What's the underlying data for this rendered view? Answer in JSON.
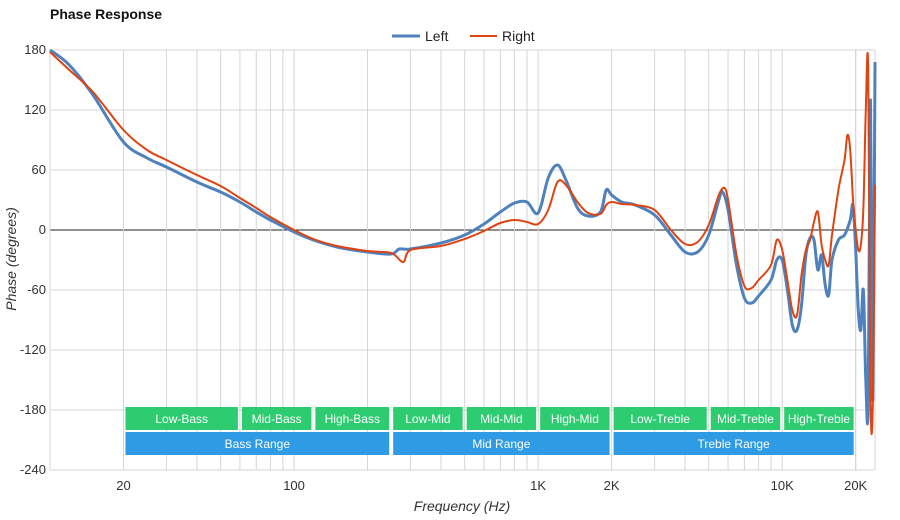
{
  "chart_data": {
    "type": "line",
    "title": "Phase Response",
    "xlabel": "Frequency (Hz)",
    "ylabel": "Phase (degrees)",
    "x_scale": "log",
    "xlim": [
      10,
      24000
    ],
    "ylim": [
      -240,
      180
    ],
    "y_ticks": [
      180,
      120,
      60,
      0,
      -60,
      -120,
      -180,
      -240
    ],
    "x_ticks": [
      {
        "value": 20,
        "label": "20"
      },
      {
        "value": 100,
        "label": "100"
      },
      {
        "value": 1000,
        "label": "1K"
      },
      {
        "value": 2000,
        "label": "2K"
      },
      {
        "value": 10000,
        "label": "10K"
      },
      {
        "value": 20000,
        "label": "20K"
      }
    ],
    "grid": true,
    "legend_position": "top-center",
    "series": [
      {
        "name": "Left",
        "color": "#4f81bd",
        "points": [
          [
            10,
            180
          ],
          [
            12,
            165
          ],
          [
            15,
            135
          ],
          [
            20,
            88
          ],
          [
            25,
            72
          ],
          [
            30,
            63
          ],
          [
            40,
            48
          ],
          [
            50,
            38
          ],
          [
            60,
            28
          ],
          [
            70,
            18
          ],
          [
            80,
            10
          ],
          [
            100,
            -2
          ],
          [
            120,
            -10
          ],
          [
            150,
            -17
          ],
          [
            200,
            -22
          ],
          [
            250,
            -24
          ],
          [
            270,
            -19
          ],
          [
            300,
            -19
          ],
          [
            400,
            -13
          ],
          [
            500,
            -5
          ],
          [
            600,
            6
          ],
          [
            700,
            18
          ],
          [
            800,
            27
          ],
          [
            900,
            28
          ],
          [
            1000,
            17
          ],
          [
            1100,
            52
          ],
          [
            1200,
            65
          ],
          [
            1300,
            50
          ],
          [
            1450,
            22
          ],
          [
            1600,
            14
          ],
          [
            1800,
            18
          ],
          [
            1900,
            40
          ],
          [
            2000,
            35
          ],
          [
            2200,
            28
          ],
          [
            2500,
            25
          ],
          [
            3000,
            15
          ],
          [
            3500,
            -5
          ],
          [
            4000,
            -22
          ],
          [
            4500,
            -22
          ],
          [
            5000,
            -5
          ],
          [
            5500,
            30
          ],
          [
            5700,
            38
          ],
          [
            6000,
            20
          ],
          [
            6500,
            -35
          ],
          [
            7000,
            -68
          ],
          [
            7500,
            -73
          ],
          [
            8000,
            -66
          ],
          [
            9000,
            -50
          ],
          [
            9500,
            -30
          ],
          [
            10000,
            -30
          ],
          [
            10500,
            -60
          ],
          [
            11000,
            -95
          ],
          [
            11500,
            -100
          ],
          [
            12000,
            -75
          ],
          [
            12500,
            -25
          ],
          [
            13000,
            -8
          ],
          [
            13500,
            -10
          ],
          [
            14000,
            -40
          ],
          [
            14500,
            -25
          ],
          [
            15000,
            -55
          ],
          [
            15500,
            -65
          ],
          [
            16000,
            -30
          ],
          [
            17000,
            -10
          ],
          [
            18000,
            -5
          ],
          [
            19000,
            10
          ],
          [
            19500,
            25
          ],
          [
            20000,
            -20
          ],
          [
            20500,
            -80
          ],
          [
            21000,
            -100
          ],
          [
            21500,
            -60
          ],
          [
            22000,
            -150
          ],
          [
            22500,
            -175
          ],
          [
            23000,
            130
          ],
          [
            23500,
            -170
          ],
          [
            24000,
            168
          ]
        ]
      },
      {
        "name": "Right",
        "color": "#dd4411",
        "points": [
          [
            10,
            178
          ],
          [
            12,
            160
          ],
          [
            15,
            138
          ],
          [
            20,
            100
          ],
          [
            25,
            80
          ],
          [
            30,
            70
          ],
          [
            40,
            55
          ],
          [
            50,
            44
          ],
          [
            60,
            32
          ],
          [
            70,
            22
          ],
          [
            80,
            13
          ],
          [
            100,
            0
          ],
          [
            120,
            -9
          ],
          [
            150,
            -16
          ],
          [
            200,
            -21
          ],
          [
            250,
            -23
          ],
          [
            280,
            -32
          ],
          [
            300,
            -20
          ],
          [
            400,
            -16
          ],
          [
            500,
            -9
          ],
          [
            600,
            -1
          ],
          [
            700,
            7
          ],
          [
            800,
            10
          ],
          [
            900,
            8
          ],
          [
            1000,
            6
          ],
          [
            1100,
            20
          ],
          [
            1200,
            48
          ],
          [
            1300,
            45
          ],
          [
            1450,
            28
          ],
          [
            1600,
            17
          ],
          [
            1800,
            16
          ],
          [
            1900,
            25
          ],
          [
            2000,
            28
          ],
          [
            2200,
            26
          ],
          [
            2500,
            25
          ],
          [
            3000,
            20
          ],
          [
            3500,
            0
          ],
          [
            4000,
            -14
          ],
          [
            4500,
            -12
          ],
          [
            5000,
            5
          ],
          [
            5500,
            35
          ],
          [
            5800,
            42
          ],
          [
            6000,
            30
          ],
          [
            6500,
            -25
          ],
          [
            7000,
            -56
          ],
          [
            7500,
            -58
          ],
          [
            8000,
            -50
          ],
          [
            9000,
            -35
          ],
          [
            9500,
            -10
          ],
          [
            10000,
            -20
          ],
          [
            10500,
            -50
          ],
          [
            11000,
            -80
          ],
          [
            11500,
            -85
          ],
          [
            12000,
            -45
          ],
          [
            12500,
            -20
          ],
          [
            13000,
            -10
          ],
          [
            13500,
            8
          ],
          [
            14000,
            18
          ],
          [
            14500,
            -15
          ],
          [
            15000,
            -30
          ],
          [
            15500,
            -35
          ],
          [
            16000,
            -5
          ],
          [
            17000,
            40
          ],
          [
            18000,
            70
          ],
          [
            18500,
            95
          ],
          [
            19000,
            80
          ],
          [
            19500,
            30
          ],
          [
            20000,
            0
          ],
          [
            20500,
            -20
          ],
          [
            21000,
            -15
          ],
          [
            21500,
            20
          ],
          [
            22000,
            120
          ],
          [
            22500,
            160
          ],
          [
            23000,
            -165
          ],
          [
            23500,
            -175
          ],
          [
            24000,
            45
          ]
        ]
      }
    ],
    "bands": [
      {
        "label": "Low-Bass",
        "row": 1,
        "color": "#2ecc71",
        "from": 20,
        "to": 60
      },
      {
        "label": "Mid-Bass",
        "row": 1,
        "color": "#2ecc71",
        "from": 60,
        "to": 120
      },
      {
        "label": "High-Bass",
        "row": 1,
        "color": "#2ecc71",
        "from": 120,
        "to": 250
      },
      {
        "label": "Low-Mid",
        "row": 1,
        "color": "#2ecc71",
        "from": 250,
        "to": 500
      },
      {
        "label": "Mid-Mid",
        "row": 1,
        "color": "#2ecc71",
        "from": 500,
        "to": 1000
      },
      {
        "label": "High-Mid",
        "row": 1,
        "color": "#2ecc71",
        "from": 1000,
        "to": 2000
      },
      {
        "label": "Low-Treble",
        "row": 1,
        "color": "#2ecc71",
        "from": 2000,
        "to": 5000
      },
      {
        "label": "Mid-Treble",
        "row": 1,
        "color": "#2ecc71",
        "from": 5000,
        "to": 10000
      },
      {
        "label": "High-Treble",
        "row": 1,
        "color": "#2ecc71",
        "from": 10000,
        "to": 20000
      },
      {
        "label": "Bass Range",
        "row": 2,
        "color": "#2e9be4",
        "from": 20,
        "to": 250
      },
      {
        "label": "Mid Range",
        "row": 2,
        "color": "#2e9be4",
        "from": 250,
        "to": 2000
      },
      {
        "label": "Treble Range",
        "row": 2,
        "color": "#2e9be4",
        "from": 2000,
        "to": 20000
      }
    ]
  }
}
